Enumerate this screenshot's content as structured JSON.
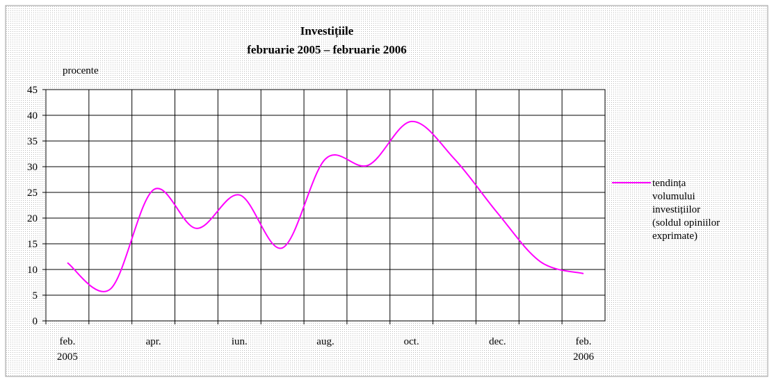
{
  "chart_data": {
    "type": "line",
    "title": "Investițiile",
    "subtitle": "februarie 2005 – februarie 2006",
    "y_label": "procente",
    "categories": [
      "feb.\n2005",
      null,
      "apr.",
      null,
      "iun.",
      null,
      "aug.",
      null,
      "oct.",
      null,
      "dec.",
      null,
      "feb.\n2006"
    ],
    "series": [
      {
        "name": "tendința\nvolumului\ninvestițiilor\n(soldul opiniilor\nexprimate)",
        "color": "#ff00ff",
        "values": [
          11.3,
          6.2,
          25.5,
          18,
          24.5,
          14.2,
          31.5,
          30.3,
          38.8,
          31.5,
          21,
          11.5,
          9.2
        ]
      }
    ],
    "ylim": [
      0,
      45
    ],
    "yticks": [
      0,
      5,
      10,
      15,
      20,
      25,
      30,
      35,
      40,
      45
    ],
    "grid": true,
    "legend": "right"
  }
}
